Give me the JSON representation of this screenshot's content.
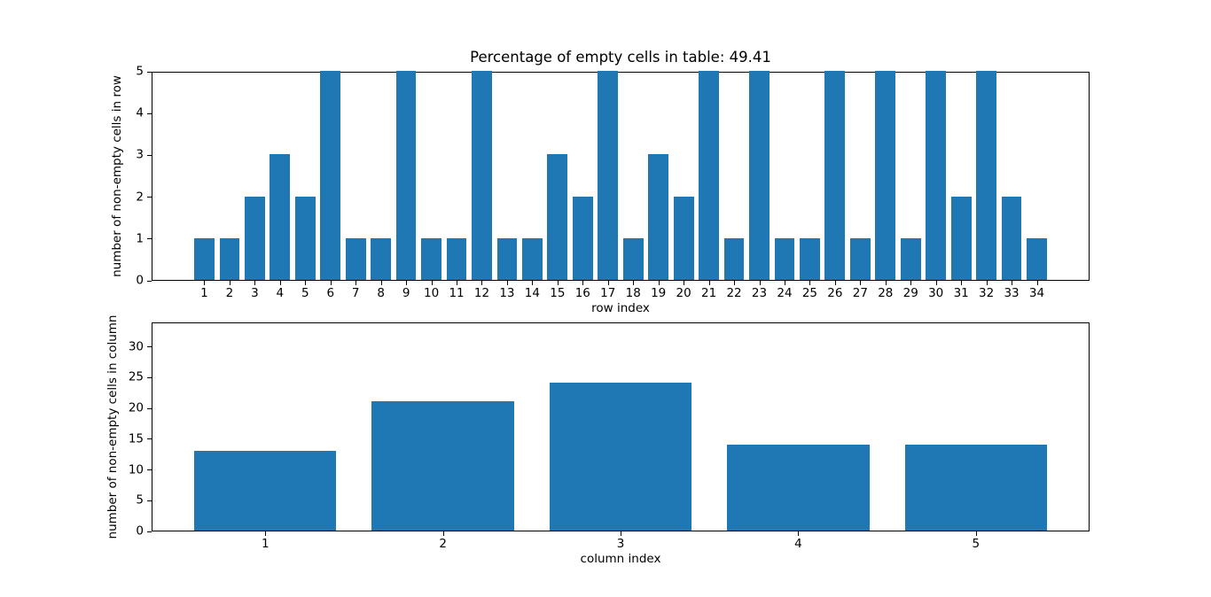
{
  "figure": {
    "background": "#ffffff",
    "accent_color": "#1f77b4",
    "title": "Percentage of empty cells in table: 49.41"
  },
  "chart_data": [
    {
      "type": "bar",
      "title": "Percentage of empty cells in table: 49.41",
      "xlabel": "row index",
      "ylabel": "number of non-empty cells in row",
      "categories": [
        1,
        2,
        3,
        4,
        5,
        6,
        7,
        8,
        9,
        10,
        11,
        12,
        13,
        14,
        15,
        16,
        17,
        18,
        19,
        20,
        21,
        22,
        23,
        24,
        25,
        26,
        27,
        28,
        29,
        30,
        31,
        32,
        33,
        34
      ],
      "values": [
        1,
        1,
        2,
        3,
        2,
        5,
        1,
        1,
        5,
        1,
        1,
        5,
        1,
        1,
        3,
        2,
        5,
        1,
        3,
        2,
        5,
        1,
        5,
        1,
        1,
        5,
        1,
        5,
        1,
        5,
        2,
        5,
        2,
        1
      ],
      "bar_color": "#1f77b4",
      "bar_width": 0.8,
      "xlim": [
        -1.09,
        36.09
      ],
      "ylim": [
        0,
        5
      ],
      "yticks": [
        0,
        1,
        2,
        3,
        4,
        5
      ],
      "grid": false,
      "legend_position": "none"
    },
    {
      "type": "bar",
      "title": "",
      "xlabel": "column index",
      "ylabel": "number of non-empty cells in column",
      "categories": [
        1,
        2,
        3,
        4,
        5
      ],
      "values": [
        13,
        21,
        24,
        14,
        14
      ],
      "bar_color": "#1f77b4",
      "bar_width": 0.8,
      "xlim": [
        0.36,
        5.64
      ],
      "ylim": [
        0,
        34
      ],
      "yticks": [
        0,
        5,
        10,
        15,
        20,
        25,
        30
      ],
      "grid": false,
      "legend_position": "none"
    }
  ]
}
